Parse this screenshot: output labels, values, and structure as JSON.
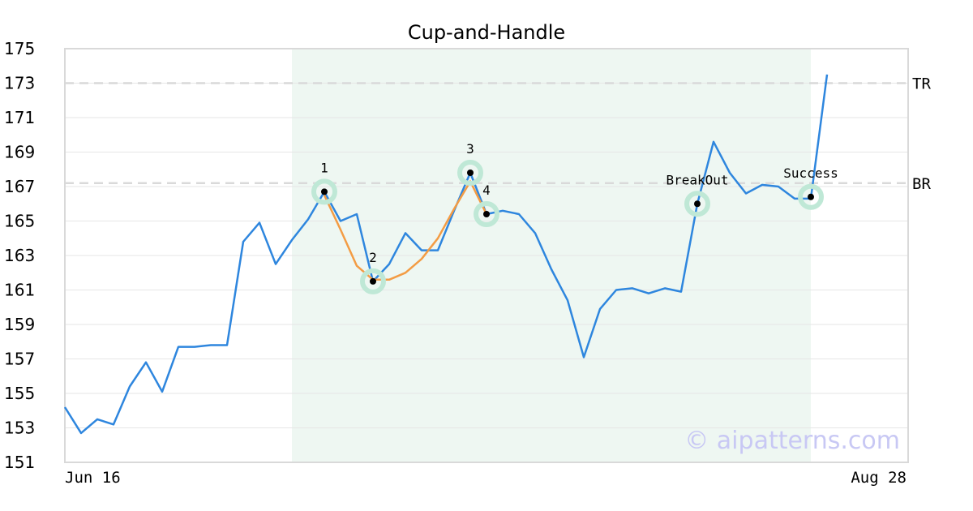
{
  "chart_data": {
    "type": "line",
    "title": "Cup-and-Handle",
    "ylim": [
      151,
      175
    ],
    "yticks": [
      "151",
      "153",
      "155",
      "157",
      "159",
      "161",
      "163",
      "165",
      "167",
      "169",
      "171",
      "173",
      "175"
    ],
    "x_start_label": "Jun 16",
    "x_end_label": "Aug 28",
    "x_count": 48,
    "series": [
      {
        "color": "#2e86de",
        "values": [
          154.2,
          152.7,
          153.5,
          153.2,
          155.4,
          156.8,
          155.1,
          157.7,
          157.7,
          157.8,
          157.8,
          163.8,
          164.9,
          162.5,
          163.9,
          165.1,
          166.7,
          165.0,
          165.4,
          161.5,
          162.5,
          164.3,
          163.3,
          163.3,
          165.6,
          167.8,
          165.4,
          165.6,
          165.4,
          164.3,
          162.2,
          160.4,
          157.1,
          159.9,
          161.0,
          161.1,
          160.8,
          161.1,
          160.9,
          166.0,
          169.6,
          167.8,
          166.6,
          167.1,
          167.0,
          166.3,
          166.3,
          173.5
        ]
      }
    ],
    "pattern_overlay": {
      "color": "#f39c44",
      "points": [
        [
          16,
          166.5
        ],
        [
          17,
          164.5
        ],
        [
          18,
          162.4
        ],
        [
          19,
          161.6
        ],
        [
          20,
          161.6
        ],
        [
          21,
          162.0
        ],
        [
          22,
          162.8
        ],
        [
          23,
          164.0
        ],
        [
          24,
          165.7
        ],
        [
          25,
          167.3
        ],
        [
          26,
          165.4
        ]
      ]
    },
    "highlight_range": {
      "from_index": 14,
      "to_index": 46,
      "color": "#eef7f2"
    },
    "reference_lines": [
      {
        "label": "TR",
        "value": 173
      },
      {
        "label": "BR",
        "value": 167.2
      }
    ],
    "markers": [
      {
        "label": "1",
        "x": 16,
        "y": 166.7,
        "label_pos": "above"
      },
      {
        "label": "2",
        "x": 19,
        "y": 161.5,
        "label_pos": "above"
      },
      {
        "label": "3",
        "x": 25,
        "y": 167.8,
        "label_pos": "above"
      },
      {
        "label": "4",
        "x": 26,
        "y": 165.4,
        "label_pos": "above"
      },
      {
        "label": "BreakOut",
        "x": 39,
        "y": 166.0,
        "label_pos": "above"
      },
      {
        "label": "Success",
        "x": 46,
        "y": 166.4,
        "label_pos": "above"
      }
    ],
    "grid": true,
    "watermark": "© aipatterns.com"
  }
}
